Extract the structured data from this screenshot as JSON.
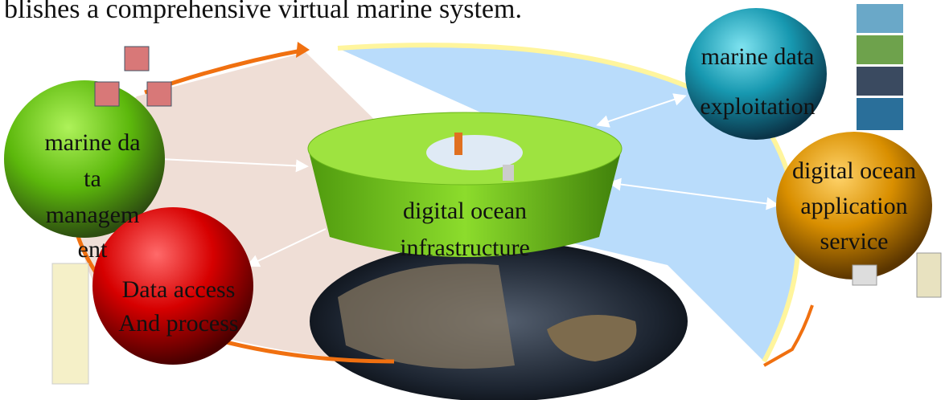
{
  "header": {
    "text": "blishes a comprehensive virtual marine system."
  },
  "nodes": [
    {
      "lines": [
        "marine da",
        "ta",
        "managem",
        "ent"
      ]
    },
    {
      "lines": [
        "marine data",
        "exploitation"
      ]
    },
    {
      "lines": [
        "digital ocean",
        "infrastructure"
      ]
    },
    {
      "lines": [
        "digital ocean",
        "application",
        "service"
      ]
    },
    {
      "lines": [
        "Data access",
        "And process"
      ]
    }
  ]
}
